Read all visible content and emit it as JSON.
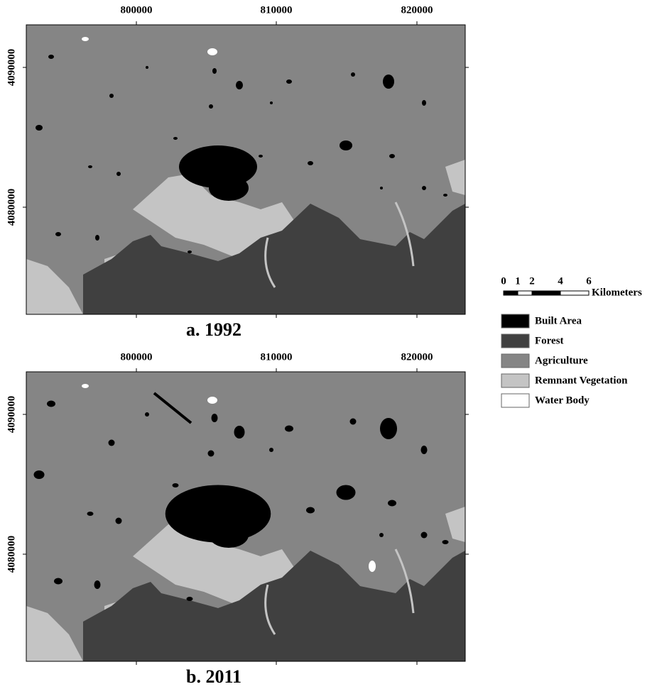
{
  "panels": [
    {
      "caption": "a. 1992",
      "x_ticks": [
        "800000",
        "810000",
        "820000"
      ],
      "y_ticks": [
        "4090000",
        "4080000"
      ]
    },
    {
      "caption": "b. 2011",
      "x_ticks": [
        "800000",
        "810000",
        "820000"
      ],
      "y_ticks": [
        "4090000",
        "4080000"
      ]
    }
  ],
  "scale_bar": {
    "labels": [
      0,
      1,
      2,
      4,
      6
    ],
    "unit": "Kilometers"
  },
  "legend": [
    {
      "label": "Built Area",
      "color": "#000000"
    },
    {
      "label": "Forest",
      "color": "#404040"
    },
    {
      "label": "Agriculture",
      "color": "#858585"
    },
    {
      "label": "Remnant Vegetation",
      "color": "#c4c4c4"
    },
    {
      "label": "Water Body",
      "color": "#ffffff"
    }
  ]
}
